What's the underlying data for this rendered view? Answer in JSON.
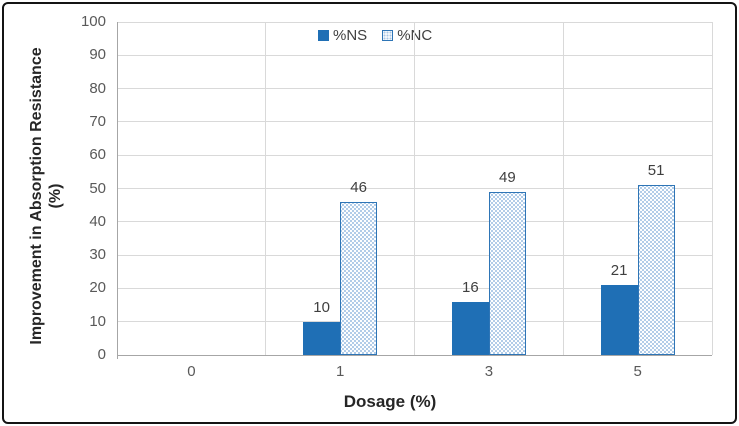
{
  "chart_data": {
    "type": "bar",
    "title": "",
    "categories": [
      "0",
      "1",
      "3",
      "5"
    ],
    "series": [
      {
        "name": "%NS",
        "values": [
          0,
          10,
          16,
          21
        ],
        "color": "#1F6FB5",
        "fill_style": "solid"
      },
      {
        "name": "%NC",
        "values": [
          0,
          46,
          49,
          51
        ],
        "color": "#2E75B6",
        "fill_style": "dotted-pattern",
        "pattern_dot_color": "#A9C6E5",
        "pattern_base_color": "#FDFEFF"
      }
    ],
    "xlabel": "Dosage (%)",
    "ylabel_line1": "Improvement in Absorption Resistance",
    "ylabel_line2": "(%)",
    "ylim": [
      0,
      100
    ],
    "yticks": [
      0,
      10,
      20,
      30,
      40,
      50,
      60,
      70,
      80,
      90,
      100
    ],
    "grid": true,
    "legend_position": "top-center",
    "data_labels": true
  },
  "colors": {
    "gridline": "#D9D9D9",
    "axis_line": "#A6A6A6",
    "tick_text": "#595959",
    "data_label_text": "#3F3F3F",
    "title_text": "#262626",
    "frame_border": "#141414",
    "background": "#FFFFFF"
  }
}
